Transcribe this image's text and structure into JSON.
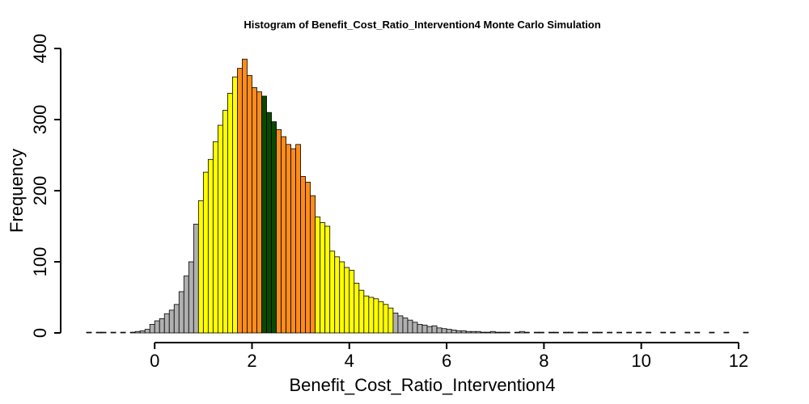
{
  "chart_data": {
    "type": "bar",
    "title": "Histogram of  Benefit_Cost_Ratio_Intervention4  Monte Carlo Simulation",
    "xlabel": "Benefit_Cost_Ratio_Intervention4",
    "ylabel": "Frequency",
    "xlim": [
      -1.4,
      12.4
    ],
    "ylim": [
      0,
      400
    ],
    "x_ticks": [
      0,
      2,
      4,
      6,
      8,
      10,
      12
    ],
    "y_ticks": [
      0,
      100,
      200,
      300,
      400
    ],
    "bin_start": -1.4,
    "bin_width": 0.1,
    "grid": false,
    "colors": {
      "tail": "#b0b0b0",
      "outer": "#ffff00",
      "inner": "#ff8c1a",
      "center": "#0a4a00",
      "edge": "#000000"
    },
    "bands": [
      {
        "name": "tail",
        "from": -1.4,
        "to": 0.9
      },
      {
        "name": "outer",
        "from": 0.9,
        "to": 1.7
      },
      {
        "name": "inner",
        "from": 1.7,
        "to": 2.2
      },
      {
        "name": "center",
        "from": 2.2,
        "to": 2.5
      },
      {
        "name": "inner",
        "from": 2.5,
        "to": 3.3
      },
      {
        "name": "outer",
        "from": 3.3,
        "to": 4.9
      },
      {
        "name": "tail",
        "from": 4.9,
        "to": 12.4
      }
    ],
    "values": [
      1,
      0,
      1,
      1,
      0,
      1,
      0,
      1,
      0,
      1,
      2,
      3,
      5,
      12,
      17,
      20,
      27,
      32,
      40,
      58,
      80,
      100,
      153,
      186,
      226,
      244,
      269,
      292,
      313,
      337,
      360,
      372,
      385,
      362,
      345,
      339,
      333,
      310,
      297,
      286,
      276,
      265,
      259,
      265,
      220,
      212,
      193,
      163,
      155,
      150,
      115,
      107,
      100,
      92,
      88,
      70,
      60,
      52,
      50,
      48,
      44,
      40,
      35,
      28,
      24,
      21,
      18,
      15,
      12,
      11,
      9,
      10,
      7,
      6,
      5,
      4,
      3,
      3,
      2,
      2,
      2,
      1,
      1,
      2,
      1,
      1,
      1,
      0,
      1,
      2,
      1,
      0,
      1,
      1,
      0,
      1,
      1,
      0,
      1,
      1,
      0,
      1,
      1,
      0,
      1,
      1,
      0,
      1,
      0,
      1,
      0,
      1,
      0,
      1,
      0,
      1,
      0,
      0,
      1,
      0,
      1,
      0,
      0,
      1,
      0,
      1,
      0,
      0,
      1,
      0,
      0,
      1,
      0,
      0,
      0,
      1,
      0,
      0
    ]
  }
}
